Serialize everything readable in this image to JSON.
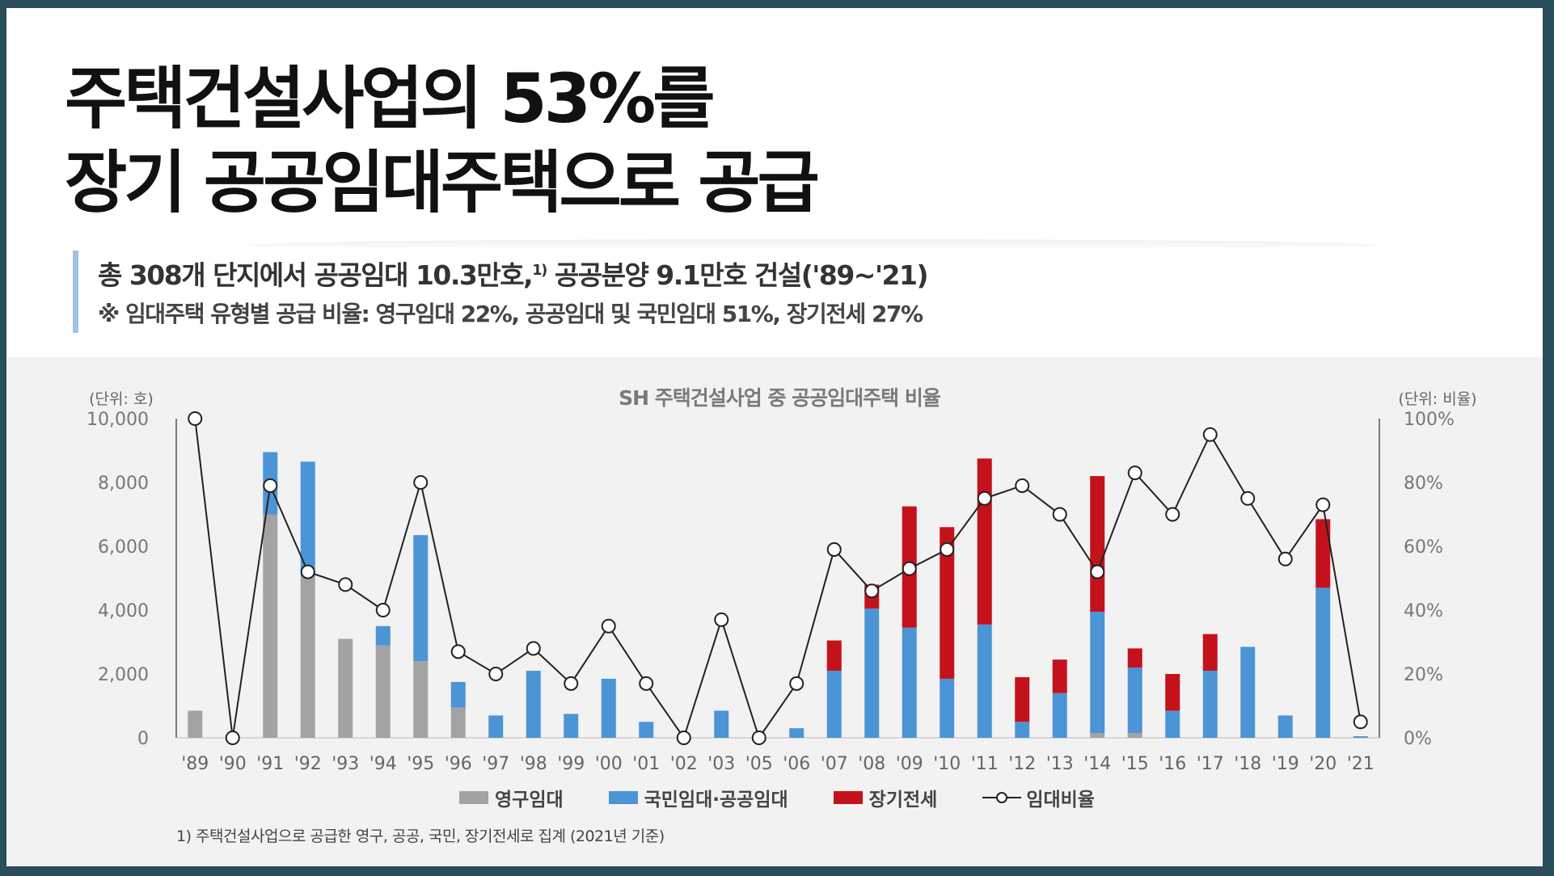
{
  "headline": {
    "line1": "주택건설사업의 53%를",
    "line2": "장기 공공임대주택으로 공급"
  },
  "subtitle": {
    "line1_main": "총 308개 단지에서 공공임대 10.3만호,",
    "line1_sup": "1)",
    "line1_rest": " 공공분양 9.1만호 건설('89~'21)",
    "line2": "※ 임대주택 유형별 공급 비율: 영구임대 22%, 공공임대 및 국민임대 51%, 장기전세 27%"
  },
  "footnote": "1) 주택건설사업으로 공급한 영구, 공공, 국민, 장기전세로 집계 (2021년 기준)",
  "colors": {
    "permanent": "#a3a3a3",
    "national_public": "#4b95d6",
    "long_term_jeonse": "#c4121c",
    "ratio_line": "#222222"
  },
  "chart_data": {
    "type": "bar",
    "stacked": true,
    "title": "SH 주택건설사업 중 공공임대주택 비율",
    "y_left_unit": "(단위: 호)",
    "y_right_unit": "(단위: 비율)",
    "ylim": [
      0,
      10000
    ],
    "yticks": [
      "10,000",
      "8,000",
      "6,000",
      "4,000",
      "2,000",
      "0"
    ],
    "y2lim": [
      0,
      100
    ],
    "y2ticks": [
      "100%",
      "80%",
      "60%",
      "40%",
      "20%",
      "0%"
    ],
    "grid": false,
    "legend_position": "bottom",
    "categories": [
      "'89",
      "'90",
      "'91",
      "'92",
      "'93",
      "'94",
      "'95",
      "'96",
      "'97",
      "'98",
      "'99",
      "'00",
      "'01",
      "'02",
      "'03",
      "'05",
      "'06",
      "'07",
      "'08",
      "'09",
      "'10",
      "'11",
      "'12",
      "'13",
      "'14",
      "'15",
      "'16",
      "'17",
      "'18",
      "'19",
      "'20",
      "'21"
    ],
    "series": [
      {
        "name": "영구임대",
        "kind": "bar",
        "values": [
          850,
          0,
          7000,
          5050,
          3100,
          2900,
          2400,
          950,
          0,
          0,
          0,
          0,
          0,
          0,
          0,
          0,
          0,
          0,
          0,
          0,
          0,
          0,
          0,
          0,
          150,
          150,
          0,
          0,
          0,
          0,
          0,
          0
        ]
      },
      {
        "name": "국민임대·공공임대",
        "kind": "bar",
        "values": [
          0,
          0,
          1950,
          3600,
          0,
          600,
          3950,
          800,
          700,
          2100,
          750,
          1850,
          500,
          0,
          850,
          0,
          300,
          2100,
          4050,
          3450,
          1850,
          3550,
          500,
          1400,
          3800,
          2050,
          850,
          2100,
          2850,
          700,
          4700,
          50
        ]
      },
      {
        "name": "장기전세",
        "kind": "bar",
        "values": [
          0,
          0,
          0,
          0,
          0,
          0,
          0,
          0,
          0,
          0,
          0,
          0,
          0,
          0,
          0,
          0,
          0,
          950,
          750,
          3800,
          4750,
          5200,
          1400,
          1050,
          4250,
          600,
          1150,
          1150,
          0,
          0,
          2150,
          0
        ]
      },
      {
        "name": "임대비율",
        "kind": "line",
        "axis": "right",
        "values": [
          100,
          0,
          79,
          52,
          48,
          40,
          80,
          27,
          20,
          28,
          17,
          35,
          17,
          0,
          37,
          0,
          17,
          59,
          46,
          53,
          59,
          75,
          79,
          70,
          52,
          83,
          70,
          95,
          75,
          56,
          73,
          5
        ]
      }
    ]
  }
}
